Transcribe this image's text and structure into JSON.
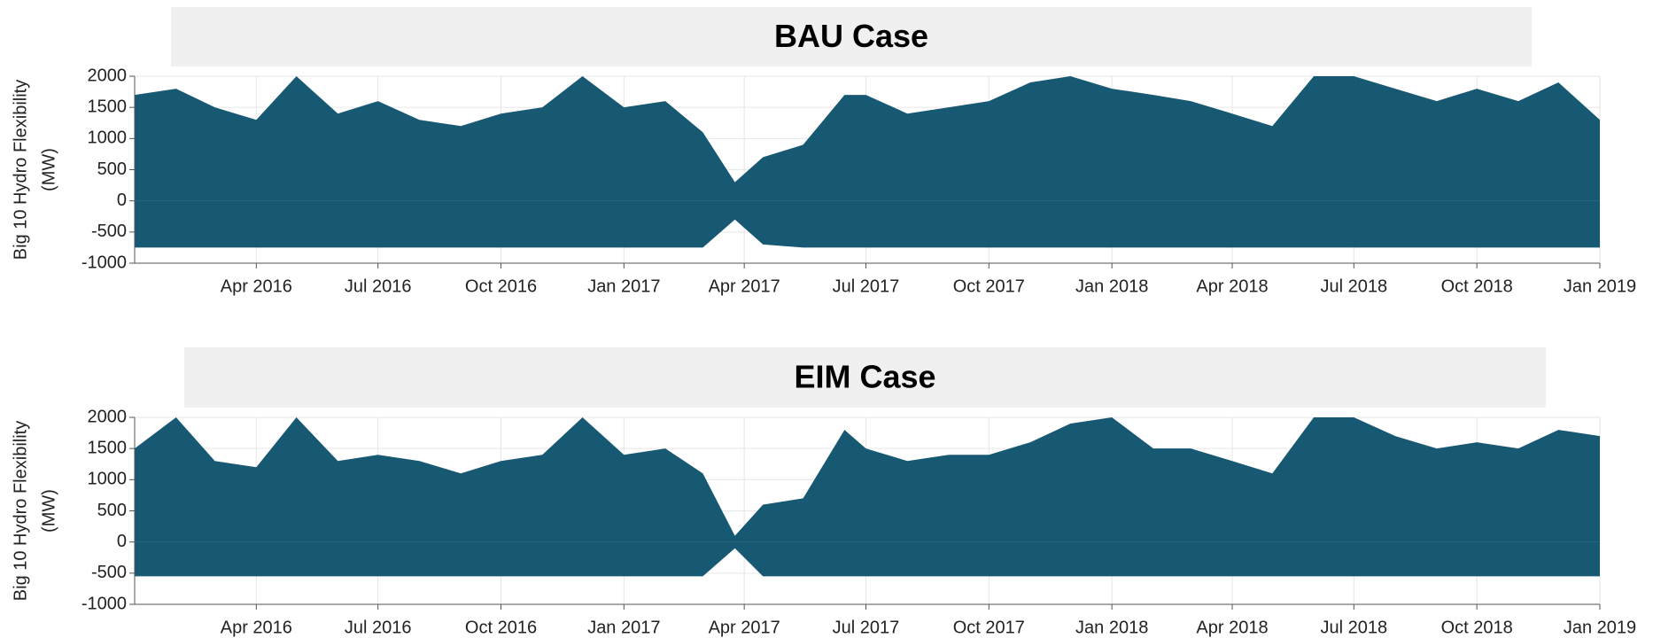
{
  "chart_data": [
    {
      "type": "range",
      "title": "BAU Case",
      "ylabel": [
        "Big 10 Hydro Flexibility",
        "(MW)"
      ],
      "color": "#0b4f6c",
      "grid": true,
      "xlim": [
        "2016-01-01",
        "2019-01-01"
      ],
      "xticks": [
        {
          "value": "2016-04-01",
          "label": "Apr 2016"
        },
        {
          "value": "2016-07-01",
          "label": "Jul 2016"
        },
        {
          "value": "2016-10-01",
          "label": "Oct 2016"
        },
        {
          "value": "2017-01-01",
          "label": "Jan 2017"
        },
        {
          "value": "2017-04-01",
          "label": "Apr 2017"
        },
        {
          "value": "2017-07-01",
          "label": "Jul 2017"
        },
        {
          "value": "2017-10-01",
          "label": "Oct 2017"
        },
        {
          "value": "2018-01-01",
          "label": "Jan 2018"
        },
        {
          "value": "2018-04-01",
          "label": "Apr 2018"
        },
        {
          "value": "2018-07-01",
          "label": "Jul 2018"
        },
        {
          "value": "2018-10-01",
          "label": "Oct 2018"
        },
        {
          "value": "2019-01-01",
          "label": "Jan 2019"
        }
      ],
      "ylim": [
        -1000,
        2000
      ],
      "yticks": [
        -1000,
        -500,
        0,
        500,
        1000,
        1500,
        2000
      ],
      "x": [
        "2016-01-01",
        "2016-02-01",
        "2016-03-01",
        "2016-04-01",
        "2016-05-01",
        "2016-06-01",
        "2016-07-01",
        "2016-08-01",
        "2016-09-01",
        "2016-10-01",
        "2016-11-01",
        "2016-12-01",
        "2017-01-01",
        "2017-02-01",
        "2017-03-01",
        "2017-03-25",
        "2017-04-15",
        "2017-05-15",
        "2017-06-15",
        "2017-07-01",
        "2017-08-01",
        "2017-09-01",
        "2017-10-01",
        "2017-11-01",
        "2017-12-01",
        "2018-01-01",
        "2018-02-01",
        "2018-03-01",
        "2018-04-01",
        "2018-05-01",
        "2018-06-01",
        "2018-07-01",
        "2018-08-01",
        "2018-09-01",
        "2018-10-01",
        "2018-11-01",
        "2018-12-01",
        "2019-01-01"
      ],
      "high": [
        1700,
        1800,
        1500,
        1300,
        2000,
        1400,
        1600,
        1300,
        1200,
        1400,
        1500,
        2000,
        1500,
        1600,
        1100,
        300,
        700,
        900,
        1700,
        1700,
        1400,
        1500,
        1600,
        1900,
        2000,
        1800,
        1700,
        1600,
        1400,
        1200,
        2000,
        2000,
        1800,
        1600,
        1800,
        1600,
        1900,
        1300
      ],
      "low": [
        -750,
        -750,
        -750,
        -750,
        -750,
        -750,
        -750,
        -750,
        -750,
        -750,
        -750,
        -750,
        -750,
        -750,
        -750,
        -300,
        -700,
        -750,
        -750,
        -750,
        -750,
        -750,
        -750,
        -750,
        -750,
        -750,
        -750,
        -750,
        -750,
        -750,
        -750,
        -750,
        -750,
        -750,
        -750,
        -750,
        -750,
        -750
      ]
    },
    {
      "type": "range",
      "title": "EIM Case",
      "ylabel": [
        "Big 10 Hydro Flexibility",
        "(MW)"
      ],
      "color": "#0b4f6c",
      "grid": true,
      "xlim": [
        "2016-01-01",
        "2019-01-01"
      ],
      "xticks": [
        {
          "value": "2016-04-01",
          "label": "Apr 2016"
        },
        {
          "value": "2016-07-01",
          "label": "Jul 2016"
        },
        {
          "value": "2016-10-01",
          "label": "Oct 2016"
        },
        {
          "value": "2017-01-01",
          "label": "Jan 2017"
        },
        {
          "value": "2017-04-01",
          "label": "Apr 2017"
        },
        {
          "value": "2017-07-01",
          "label": "Jul 2017"
        },
        {
          "value": "2017-10-01",
          "label": "Oct 2017"
        },
        {
          "value": "2018-01-01",
          "label": "Jan 2018"
        },
        {
          "value": "2018-04-01",
          "label": "Apr 2018"
        },
        {
          "value": "2018-07-01",
          "label": "Jul 2018"
        },
        {
          "value": "2018-10-01",
          "label": "Oct 2018"
        },
        {
          "value": "2019-01-01",
          "label": "Jan 2019"
        }
      ],
      "ylim": [
        -1000,
        2000
      ],
      "yticks": [
        -1000,
        -500,
        0,
        500,
        1000,
        1500,
        2000
      ],
      "x": [
        "2016-01-01",
        "2016-02-01",
        "2016-03-01",
        "2016-04-01",
        "2016-05-01",
        "2016-06-01",
        "2016-07-01",
        "2016-08-01",
        "2016-09-01",
        "2016-10-01",
        "2016-11-01",
        "2016-12-01",
        "2017-01-01",
        "2017-02-01",
        "2017-03-01",
        "2017-03-25",
        "2017-04-15",
        "2017-05-15",
        "2017-06-15",
        "2017-07-01",
        "2017-08-01",
        "2017-09-01",
        "2017-10-01",
        "2017-11-01",
        "2017-12-01",
        "2018-01-01",
        "2018-02-01",
        "2018-03-01",
        "2018-04-01",
        "2018-05-01",
        "2018-06-01",
        "2018-07-01",
        "2018-08-01",
        "2018-09-01",
        "2018-10-01",
        "2018-11-01",
        "2018-12-01",
        "2019-01-01"
      ],
      "high": [
        1500,
        2000,
        1300,
        1200,
        2000,
        1300,
        1400,
        1300,
        1100,
        1300,
        1400,
        2000,
        1400,
        1500,
        1100,
        100,
        600,
        700,
        1800,
        1500,
        1300,
        1400,
        1400,
        1600,
        1900,
        2000,
        1500,
        1500,
        1300,
        1100,
        2000,
        2000,
        1700,
        1500,
        1600,
        1500,
        1800,
        1700
      ],
      "low": [
        -550,
        -550,
        -550,
        -550,
        -550,
        -550,
        -550,
        -550,
        -550,
        -550,
        -550,
        -550,
        -550,
        -550,
        -550,
        -100,
        -550,
        -550,
        -550,
        -550,
        -550,
        -550,
        -550,
        -550,
        -550,
        -550,
        -550,
        -550,
        -550,
        -550,
        -550,
        -550,
        -550,
        -550,
        -550,
        -550,
        -550,
        -550
      ]
    }
  ]
}
